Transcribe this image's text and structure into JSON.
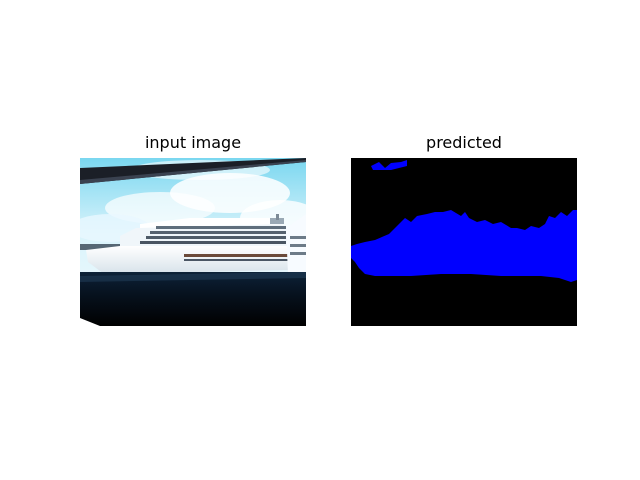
{
  "panels": {
    "left": {
      "title": "input image"
    },
    "right": {
      "title": "predicted"
    }
  },
  "colors": {
    "background": "#ffffff",
    "mask_background": "#000000",
    "mask_class": "#0000ff"
  }
}
